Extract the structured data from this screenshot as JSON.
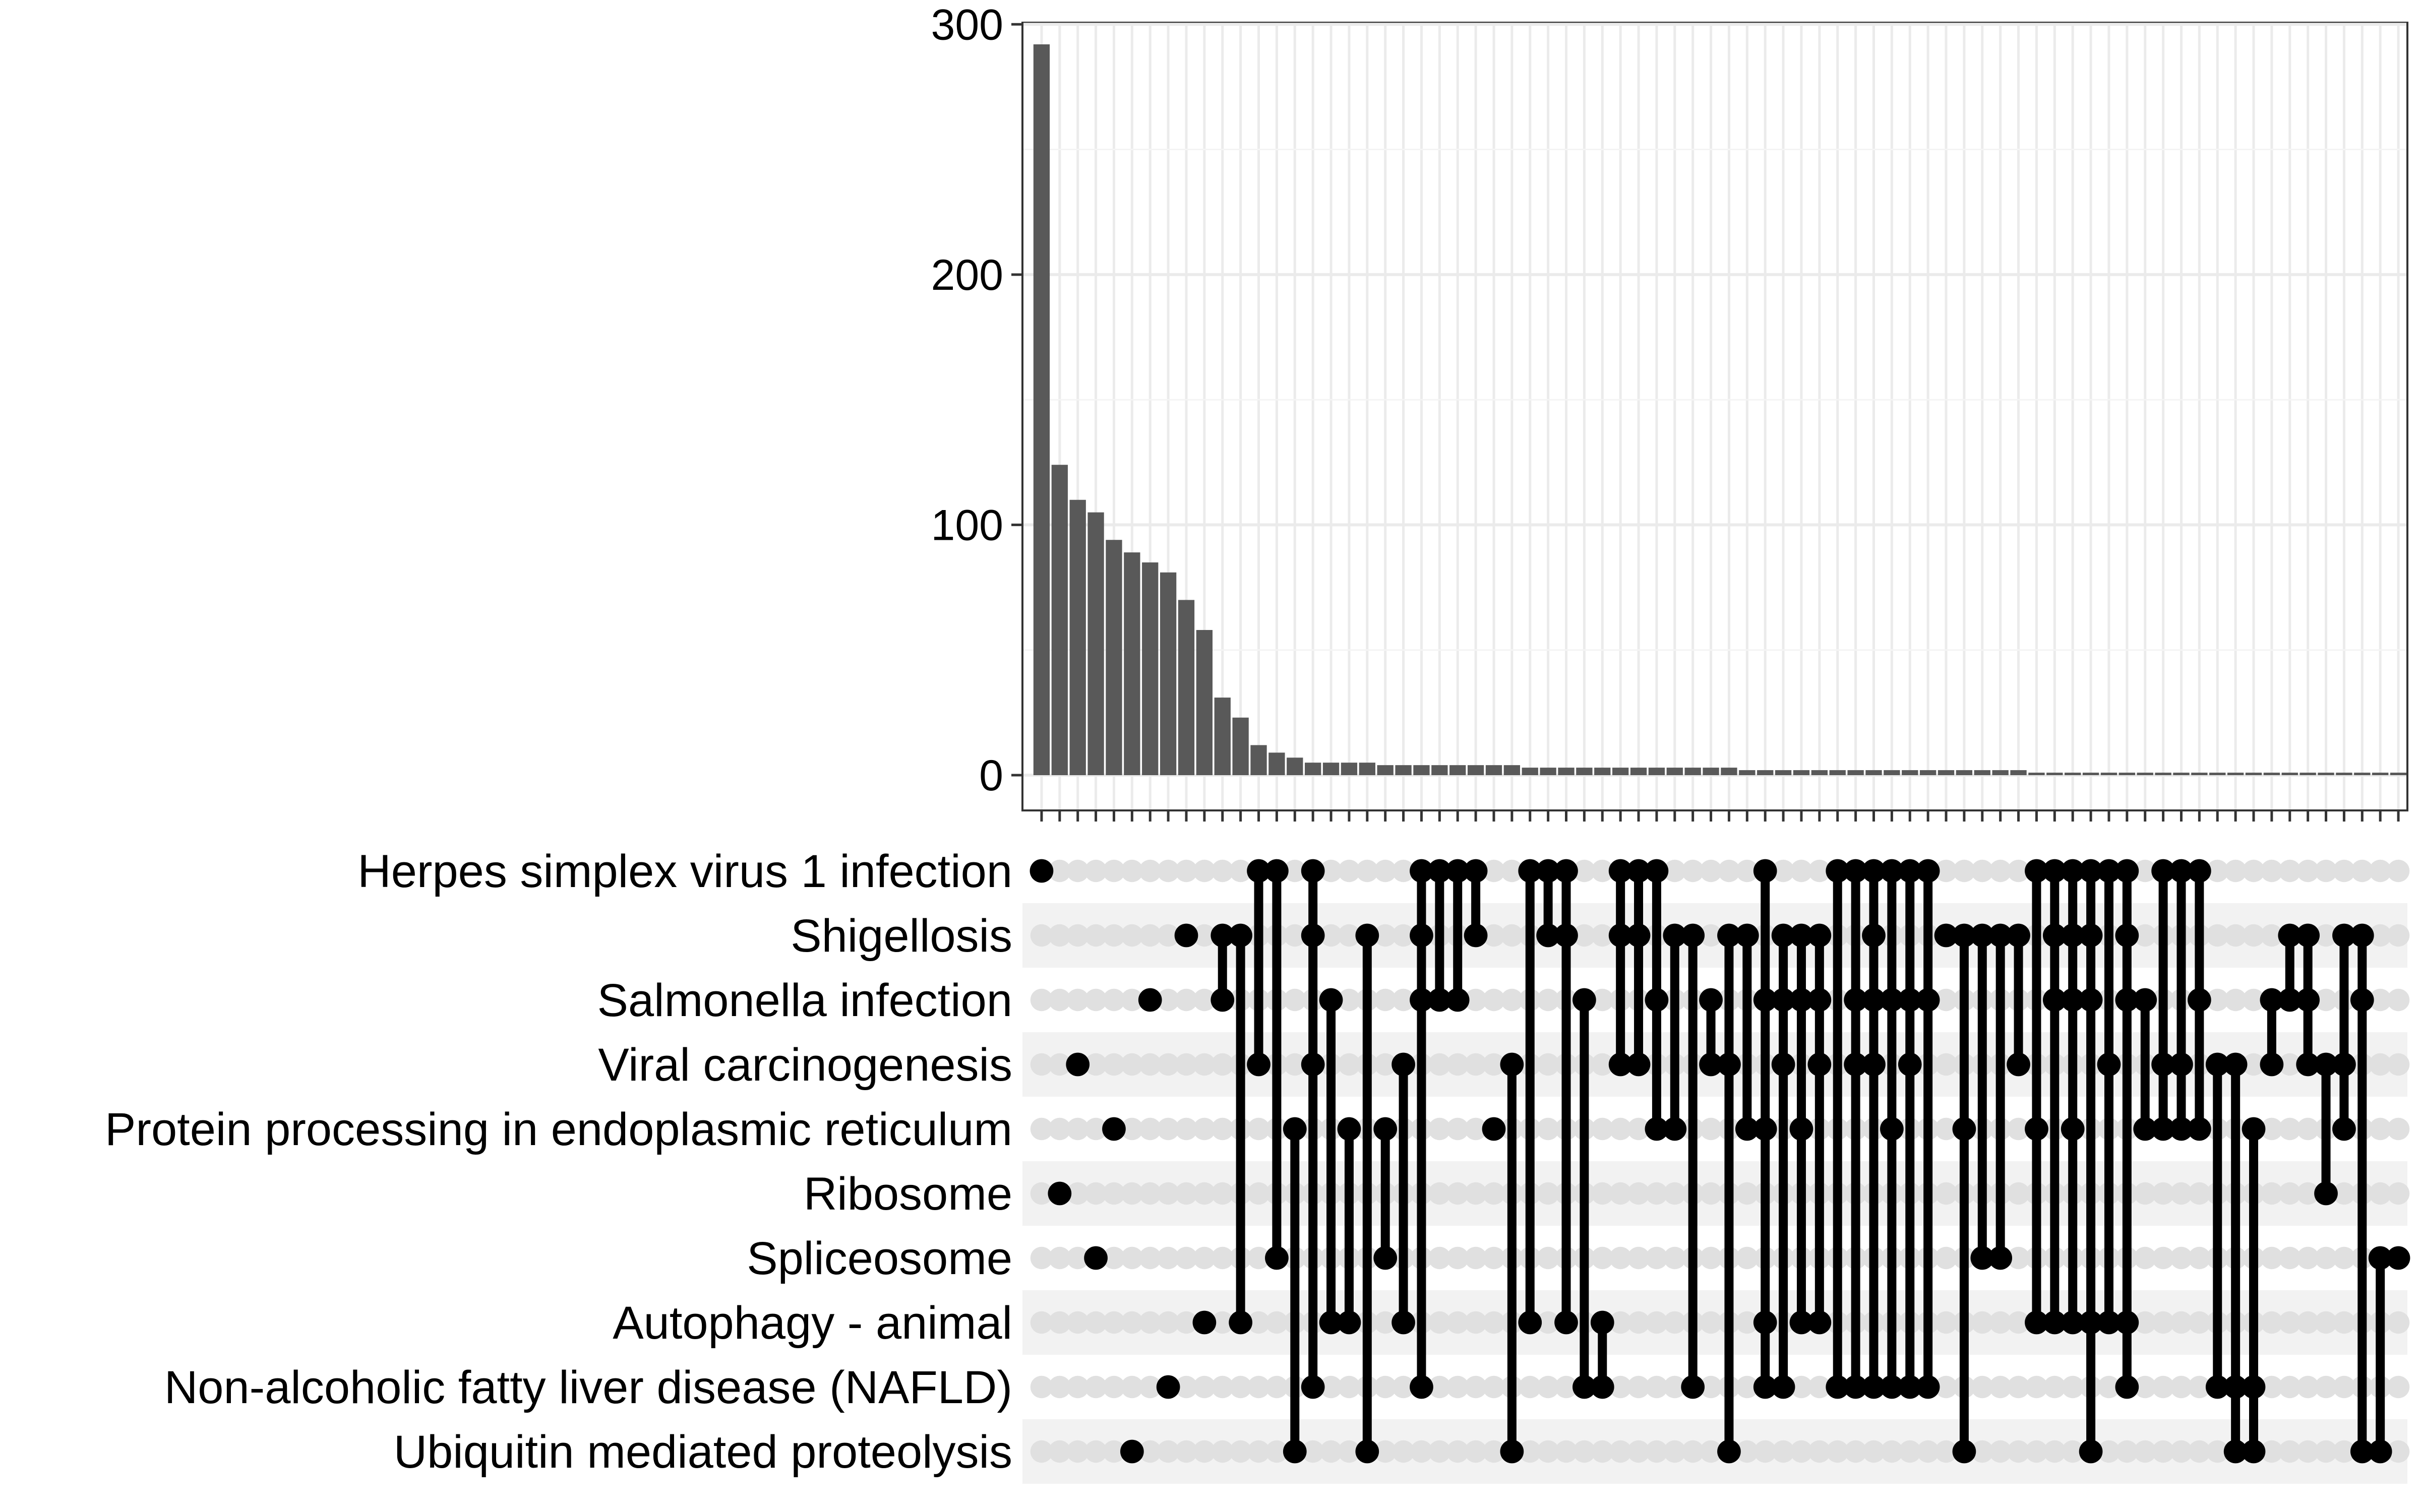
{
  "chart_data": {
    "type": "bar",
    "subtype": "upset",
    "ylim": [
      0,
      300
    ],
    "yticks": [
      0,
      100,
      200,
      300
    ],
    "grid": true,
    "colors": {
      "bar": "#595959",
      "dot": "#000000",
      "empty_dot": "#e0e0e0",
      "grid": "#ebebeb",
      "row_band": "#f2f2f2"
    },
    "sets": [
      "Herpes simplex virus 1 infection",
      "Shigellosis",
      "Salmonella infection",
      "Viral carcinogenesis",
      "Protein processing in endoplasmic reticulum",
      "Ribosome",
      "Spliceosome",
      "Autophagy - animal",
      "Non-alcoholic fatty liver disease (NAFLD)",
      "Ubiquitin mediated proteolysis"
    ],
    "intersections": [
      {
        "size": 292,
        "sets": [
          0
        ]
      },
      {
        "size": 124,
        "sets": [
          5
        ]
      },
      {
        "size": 110,
        "sets": [
          3
        ]
      },
      {
        "size": 105,
        "sets": [
          6
        ]
      },
      {
        "size": 94,
        "sets": [
          4
        ]
      },
      {
        "size": 89,
        "sets": [
          9
        ]
      },
      {
        "size": 85,
        "sets": [
          2
        ]
      },
      {
        "size": 81,
        "sets": [
          8
        ]
      },
      {
        "size": 70,
        "sets": [
          1
        ]
      },
      {
        "size": 58,
        "sets": [
          7
        ]
      },
      {
        "size": 31,
        "sets": [
          1,
          2
        ]
      },
      {
        "size": 23,
        "sets": [
          1,
          7
        ]
      },
      {
        "size": 12,
        "sets": [
          0,
          3
        ]
      },
      {
        "size": 9,
        "sets": [
          0,
          6
        ]
      },
      {
        "size": 7,
        "sets": [
          4,
          9
        ]
      },
      {
        "size": 5,
        "sets": [
          0,
          1,
          3,
          8
        ]
      },
      {
        "size": 5,
        "sets": [
          2,
          7
        ]
      },
      {
        "size": 5,
        "sets": [
          4,
          7
        ]
      },
      {
        "size": 5,
        "sets": [
          1,
          9
        ]
      },
      {
        "size": 4,
        "sets": [
          4,
          6
        ]
      },
      {
        "size": 4,
        "sets": [
          3,
          7
        ]
      },
      {
        "size": 4,
        "sets": [
          0,
          1,
          2,
          8
        ]
      },
      {
        "size": 4,
        "sets": [
          0,
          2
        ]
      },
      {
        "size": 4,
        "sets": [
          0,
          2
        ]
      },
      {
        "size": 4,
        "sets": [
          0,
          1
        ]
      },
      {
        "size": 4,
        "sets": [
          4
        ]
      },
      {
        "size": 4,
        "sets": [
          3,
          9
        ]
      },
      {
        "size": 3,
        "sets": [
          0,
          7
        ]
      },
      {
        "size": 3,
        "sets": [
          0,
          1
        ]
      },
      {
        "size": 3,
        "sets": [
          0,
          1,
          7
        ]
      },
      {
        "size": 3,
        "sets": [
          2,
          8
        ]
      },
      {
        "size": 3,
        "sets": [
          7,
          8
        ]
      },
      {
        "size": 3,
        "sets": [
          0,
          1,
          3
        ]
      },
      {
        "size": 3,
        "sets": [
          0,
          1,
          3
        ]
      },
      {
        "size": 3,
        "sets": [
          0,
          2,
          4
        ]
      },
      {
        "size": 3,
        "sets": [
          1,
          4
        ]
      },
      {
        "size": 3,
        "sets": [
          1,
          8
        ]
      },
      {
        "size": 3,
        "sets": [
          2,
          3
        ]
      },
      {
        "size": 3,
        "sets": [
          1,
          3,
          9
        ]
      },
      {
        "size": 2,
        "sets": [
          1,
          4
        ]
      },
      {
        "size": 2,
        "sets": [
          0,
          2,
          4,
          7,
          8
        ]
      },
      {
        "size": 2,
        "sets": [
          1,
          2,
          3,
          8
        ]
      },
      {
        "size": 2,
        "sets": [
          1,
          2,
          4,
          7
        ]
      },
      {
        "size": 2,
        "sets": [
          1,
          2,
          3,
          7
        ]
      },
      {
        "size": 2,
        "sets": [
          0,
          8
        ]
      },
      {
        "size": 2,
        "sets": [
          0,
          2,
          3,
          8
        ]
      },
      {
        "size": 2,
        "sets": [
          0,
          1,
          2,
          3,
          8
        ]
      },
      {
        "size": 2,
        "sets": [
          0,
          2,
          4,
          8
        ]
      },
      {
        "size": 2,
        "sets": [
          0,
          2,
          3,
          8
        ]
      },
      {
        "size": 2,
        "sets": [
          0,
          2,
          8
        ]
      },
      {
        "size": 2,
        "sets": [
          1
        ]
      },
      {
        "size": 2,
        "sets": [
          1,
          4,
          9
        ]
      },
      {
        "size": 2,
        "sets": [
          1,
          6
        ]
      },
      {
        "size": 2,
        "sets": [
          1,
          6
        ]
      },
      {
        "size": 2,
        "sets": [
          1,
          3
        ]
      },
      {
        "size": 1,
        "sets": [
          0,
          4,
          7
        ]
      },
      {
        "size": 1,
        "sets": [
          0,
          1,
          2,
          7
        ]
      },
      {
        "size": 1,
        "sets": [
          0,
          1,
          2,
          4,
          7
        ]
      },
      {
        "size": 1,
        "sets": [
          0,
          1,
          2,
          7,
          9
        ]
      },
      {
        "size": 1,
        "sets": [
          0,
          3,
          7
        ]
      },
      {
        "size": 1,
        "sets": [
          0,
          1,
          2,
          7,
          8
        ]
      },
      {
        "size": 1,
        "sets": [
          2,
          4
        ]
      },
      {
        "size": 1,
        "sets": [
          0,
          3,
          4
        ]
      },
      {
        "size": 1,
        "sets": [
          0,
          3,
          4
        ]
      },
      {
        "size": 1,
        "sets": [
          0,
          2,
          4
        ]
      },
      {
        "size": 1,
        "sets": [
          3,
          8
        ]
      },
      {
        "size": 1,
        "sets": [
          3,
          8,
          9
        ]
      },
      {
        "size": 1,
        "sets": [
          4,
          8,
          9
        ]
      },
      {
        "size": 1,
        "sets": [
          2,
          3
        ]
      },
      {
        "size": 1,
        "sets": [
          1,
          2
        ]
      },
      {
        "size": 1,
        "sets": [
          1,
          2,
          3
        ]
      },
      {
        "size": 1,
        "sets": [
          3,
          5
        ]
      },
      {
        "size": 1,
        "sets": [
          1,
          3,
          4
        ]
      },
      {
        "size": 1,
        "sets": [
          1,
          2,
          9
        ]
      },
      {
        "size": 1,
        "sets": [
          6,
          9
        ]
      },
      {
        "size": 1,
        "sets": [
          6
        ]
      }
    ]
  }
}
